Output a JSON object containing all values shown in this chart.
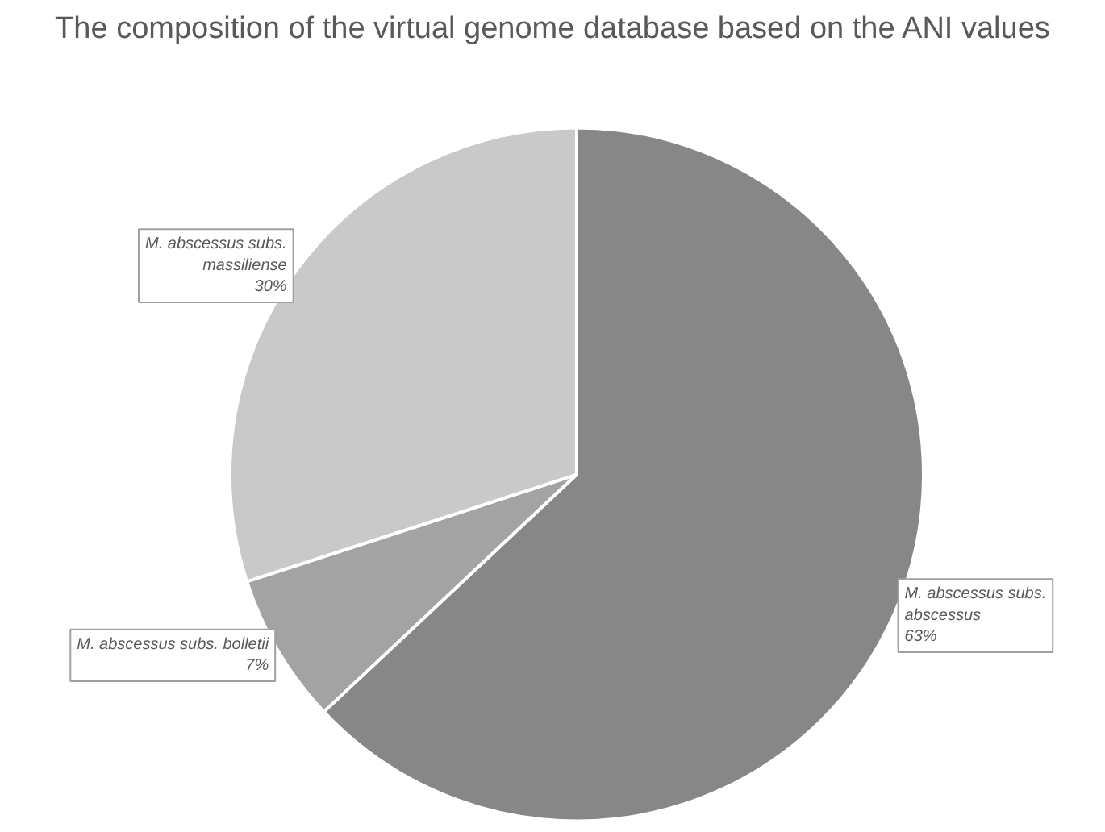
{
  "chart_data": {
    "type": "pie",
    "title": "The composition of the virtual genome database based on the ANI values",
    "categories": [
      "M. abscessus subs. abscessus",
      "M. abscessus subs. bolletii",
      "M. abscessus subs. massiliense"
    ],
    "values": [
      63,
      7,
      30
    ],
    "colors": [
      "#878787",
      "#a3a3a3",
      "#c9c9c9"
    ],
    "value_labels": [
      "63%",
      "7%",
      "30%"
    ]
  }
}
